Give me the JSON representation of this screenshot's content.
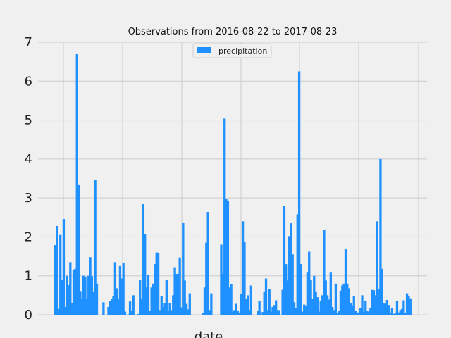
{
  "chart_data": {
    "type": "bar",
    "title": "Observations from 2016-08-22 to 2017-08-23",
    "xlabel": "date",
    "ylabel": "",
    "ylim": [
      0,
      7
    ],
    "yticks": [
      0,
      1,
      2,
      3,
      4,
      5,
      6,
      7
    ],
    "grid": true,
    "legend_position": "top-center",
    "series": [
      {
        "name": "precipitation",
        "color": "#1e90ff",
        "values": [
          1.79,
          2.28,
          0.15,
          2.05,
          0.9,
          2.46,
          0.2,
          1.0,
          0.76,
          1.35,
          0.3,
          1.15,
          1.18,
          6.7,
          3.33,
          0.61,
          0.4,
          1.0,
          0.96,
          0.4,
          1.0,
          1.48,
          0.99,
          0.6,
          3.46,
          0.8,
          0,
          0,
          0,
          0.32,
          0,
          0,
          0.2,
          0.35,
          0.4,
          0.48,
          1.35,
          0.68,
          0.4,
          1.25,
          0.93,
          1.33,
          0.08,
          0,
          0.01,
          0.34,
          0.1,
          0.5,
          0,
          0,
          0.02,
          0.9,
          0.4,
          2.85,
          2.08,
          0.7,
          1.03,
          0.1,
          0.7,
          0.8,
          1.3,
          1.6,
          1.59,
          0.12,
          0.48,
          0.2,
          0.3,
          0.9,
          0.1,
          0.3,
          0.12,
          0.5,
          1.22,
          1.05,
          1.05,
          1.47,
          0.19,
          2.37,
          0.88,
          0.28,
          0.14,
          0.55,
          0,
          0,
          0,
          0,
          0,
          0,
          0,
          0.05,
          0.7,
          1.85,
          2.64,
          0.12,
          0.55,
          0,
          0,
          0,
          0,
          0,
          1.8,
          1.05,
          5.04,
          2.97,
          2.92,
          0.7,
          0.79,
          0.08,
          0.12,
          0.28,
          0.1,
          0.05,
          0.53,
          2.4,
          1.88,
          0.4,
          0.5,
          0.12,
          0.75,
          0,
          0,
          0,
          0.1,
          0.35,
          0,
          0.07,
          0.6,
          0.93,
          0.12,
          0.66,
          0.08,
          0.2,
          0.25,
          0.37,
          0.12,
          0.12,
          0,
          0.64,
          2.8,
          1.3,
          0.88,
          2.02,
          2.35,
          1.55,
          0.32,
          0.18,
          2.58,
          6.25,
          1.3,
          0.08,
          0.26,
          0.24,
          1.1,
          1.62,
          0.9,
          0.4,
          1.0,
          0.6,
          0.45,
          0.08,
          0.35,
          0.5,
          2.18,
          0.88,
          0.5,
          0.39,
          1.1,
          0.2,
          0.12,
          0.8,
          0.05,
          0.1,
          0.62,
          0.75,
          0.8,
          1.68,
          0.8,
          0.68,
          0.29,
          0.24,
          0.48,
          0.1,
          0.04,
          0.06,
          0.18,
          0.5,
          0.08,
          0.36,
          0.1,
          0.07,
          0.18,
          0.64,
          0.63,
          0.5,
          2.4,
          0.65,
          4.0,
          1.18,
          0.3,
          0.28,
          0.38,
          0.25,
          0.05,
          0.18,
          0.02,
          0.04,
          0.35,
          0.06,
          0.12,
          0.15,
          0.37,
          0.05,
          0.55,
          0.48,
          0.42
        ]
      }
    ]
  }
}
